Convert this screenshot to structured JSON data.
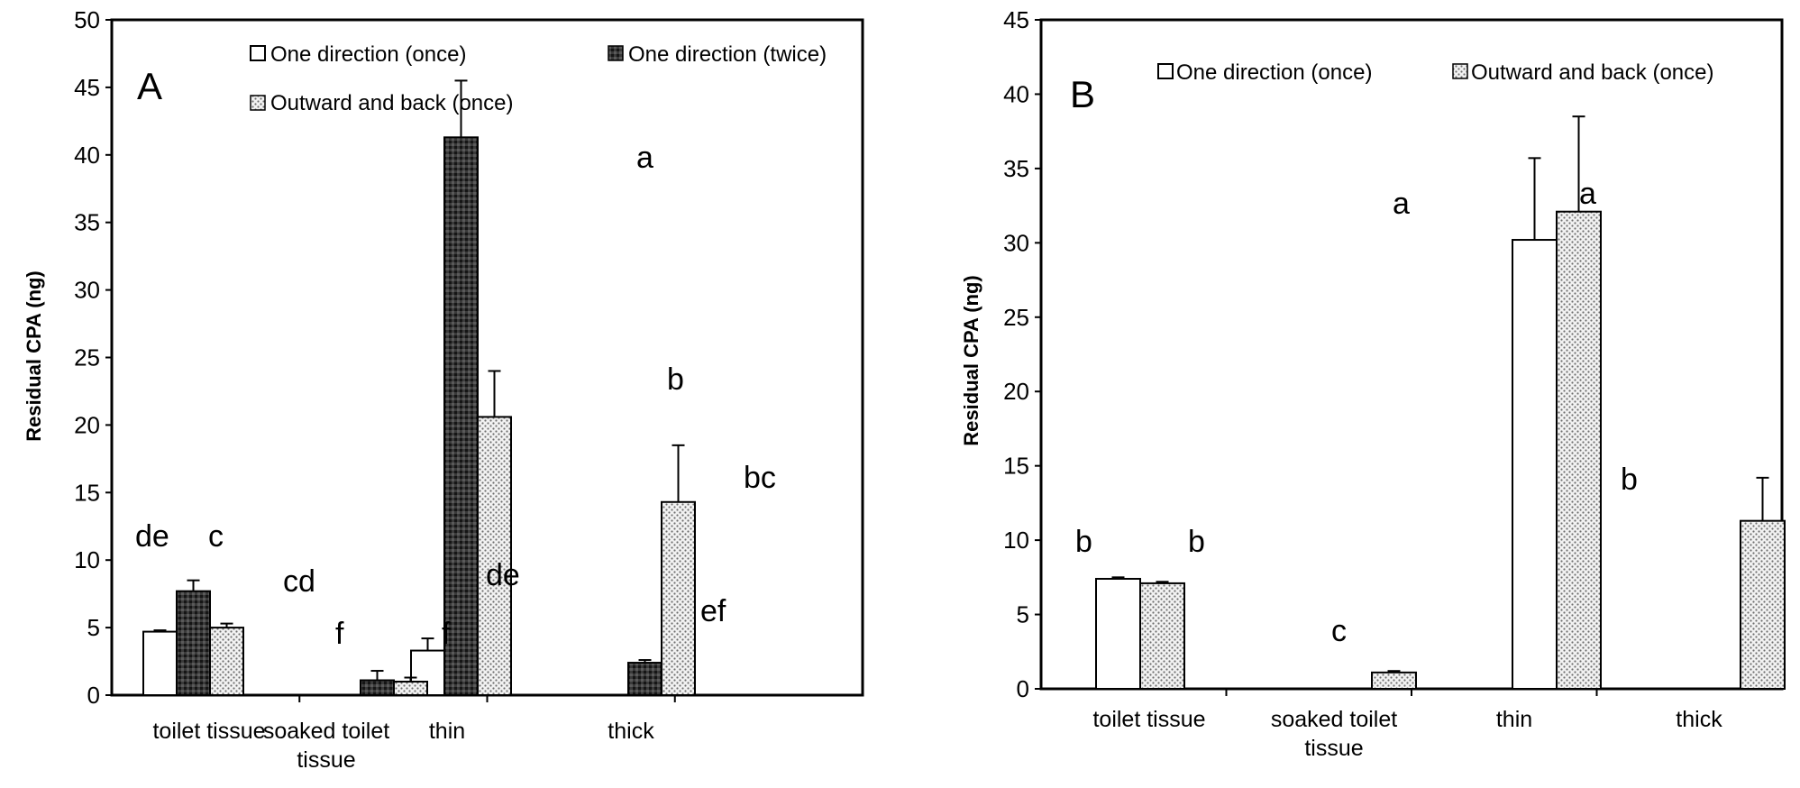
{
  "chart_data": [
    {
      "panel": "A",
      "type": "bar",
      "ylabel": "Residual CPA (ng)",
      "ylim": [
        0,
        50
      ],
      "yticks": [
        "0",
        "5",
        "10",
        "15",
        "20",
        "25",
        "30",
        "35",
        "40",
        "45",
        "50"
      ],
      "categories": [
        "toilet tissue",
        "soaked toilet tissue",
        "thin",
        "thick"
      ],
      "legend": [
        "One direction (once)",
        "One direction (twice)",
        "Outward and back (once)"
      ],
      "series": [
        {
          "name": "One direction (once)",
          "pattern": "white",
          "values": [
            4.7,
            0,
            3.3,
            0
          ],
          "errors": [
            0.1,
            0,
            0.9,
            0
          ]
        },
        {
          "name": "One direction (twice)",
          "pattern": "dark",
          "values": [
            7.7,
            1.1,
            41.3,
            2.4
          ],
          "errors": [
            0.8,
            0.7,
            4.2,
            0.2
          ]
        },
        {
          "name": "Outward and back (once)",
          "pattern": "dotted",
          "values": [
            5.0,
            1.0,
            20.6,
            14.3
          ],
          "errors": [
            0.3,
            0.3,
            3.4,
            4.2
          ]
        }
      ],
      "annotations": [
        "de",
        "c",
        "cd",
        "f",
        "f",
        "de",
        "a",
        "b",
        "ef",
        "bc"
      ]
    },
    {
      "panel": "B",
      "type": "bar",
      "ylabel": "Residual CPA (ng)",
      "ylim": [
        0,
        45
      ],
      "yticks": [
        "0",
        "5",
        "10",
        "15",
        "20",
        "25",
        "30",
        "35",
        "40",
        "45"
      ],
      "categories": [
        "toilet tissue",
        "soaked toilet tissue",
        "thin",
        "thick"
      ],
      "legend": [
        "One direction (once)",
        "Outward and back (once)"
      ],
      "series": [
        {
          "name": "One direction (once)",
          "pattern": "white",
          "values": [
            7.4,
            0,
            30.2,
            0
          ],
          "errors": [
            0.1,
            0,
            5.5,
            0
          ]
        },
        {
          "name": "Outward and back (once)",
          "pattern": "dotted",
          "values": [
            7.1,
            1.1,
            32.1,
            11.3
          ],
          "errors": [
            0.1,
            0.1,
            6.4,
            2.9
          ]
        }
      ],
      "annotations": [
        "b",
        "b",
        "c",
        "a",
        "a",
        "b"
      ]
    }
  ]
}
